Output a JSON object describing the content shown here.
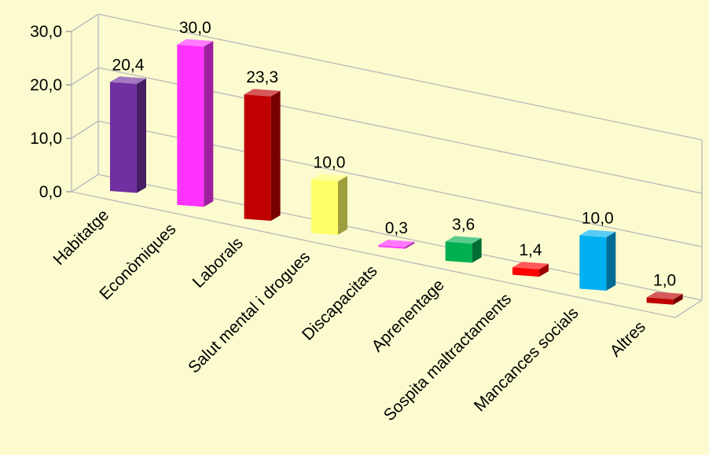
{
  "chart_data": {
    "type": "bar",
    "categories": [
      "Habitatge",
      "Econòmiques",
      "Laborals",
      "Salut mental i drogues",
      "Discapacitats",
      "Aprenentage",
      "Sospita maltractaments",
      "Mancances socials",
      "Altres"
    ],
    "values": [
      20.4,
      30.0,
      23.3,
      10.0,
      0.3,
      3.6,
      1.4,
      10.0,
      1.0
    ],
    "value_labels": [
      "20,4",
      "30,0",
      "23,3",
      "10,0",
      "0,3",
      "3,6",
      "1,4",
      "10,0",
      "1,0"
    ],
    "y_ticks": [
      0,
      10,
      20,
      30
    ],
    "y_tick_labels": [
      "0,0",
      "10,0",
      "20,0",
      "30,0"
    ],
    "ylim": [
      0,
      30
    ],
    "grid": true,
    "three_d": true,
    "colors": [
      "#7030a0",
      "#ff33ff",
      "#c00000",
      "#ffff66",
      "#ff33ff",
      "#00b050",
      "#ff0000",
      "#00b0f0",
      "#c00000"
    ],
    "background_color": "#fbfbcf",
    "gridline_color": "#bcbcbc"
  }
}
